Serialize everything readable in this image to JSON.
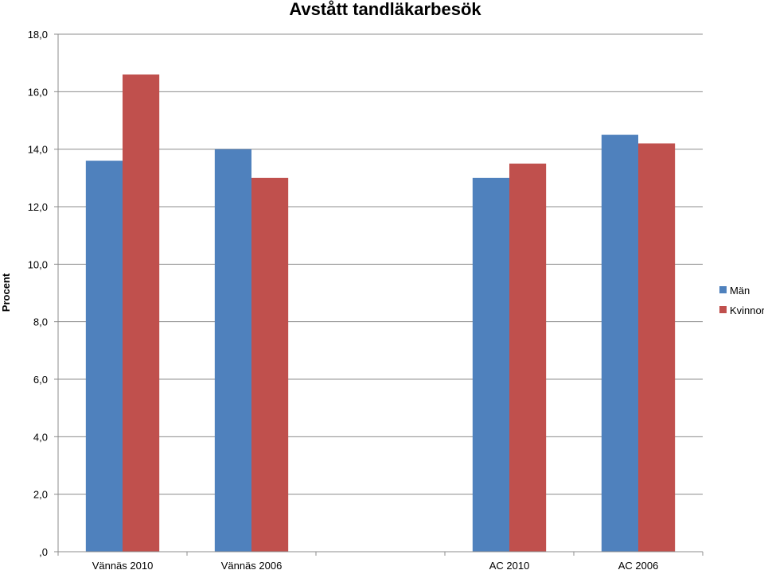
{
  "chart_data": {
    "type": "bar",
    "title": "Avstått tandläkarbesök",
    "ylabel": "Procent",
    "xlabel": "",
    "ylim": [
      0,
      18
    ],
    "yticks": [
      0,
      2,
      4,
      6,
      8,
      10,
      12,
      14,
      16,
      18
    ],
    "ytick_labels": [
      ",0",
      "2,0",
      "4,0",
      "6,0",
      "8,0",
      "10,0",
      "12,0",
      "14,0",
      "16,0",
      "18,0"
    ],
    "grid": true,
    "legend_position": "right",
    "categories": [
      "Vännäs 2010",
      "Vännäs 2006",
      "",
      "AC 2010",
      "AC 2006"
    ],
    "series": [
      {
        "name": "Män",
        "color": "#4F81BD",
        "values": [
          13.6,
          14.0,
          null,
          13.0,
          14.5
        ]
      },
      {
        "name": "Kvinnor",
        "color": "#C0504D",
        "values": [
          16.6,
          13.0,
          null,
          13.5,
          14.2
        ]
      }
    ]
  }
}
